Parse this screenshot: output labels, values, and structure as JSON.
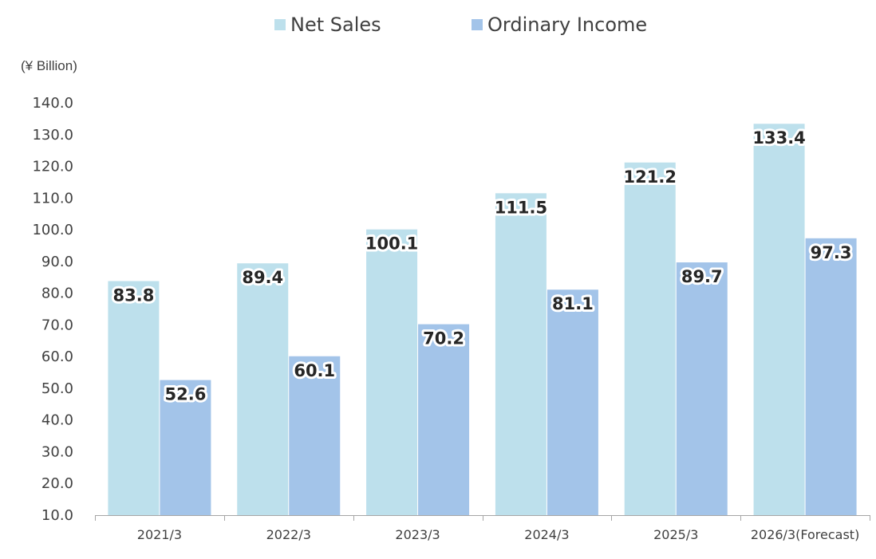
{
  "chart_data": {
    "type": "bar",
    "title": "",
    "unit_label": "(¥ Billion)",
    "xlabel": "",
    "ylabel": "",
    "categories": [
      "2021/3",
      "2022/3",
      "2023/3",
      "2024/3",
      "2025/3",
      "2026/3(Forecast)"
    ],
    "series": [
      {
        "name": "Net Sales",
        "color": "#bde0ec",
        "values": [
          83.8,
          89.4,
          100.1,
          111.5,
          121.2,
          133.4
        ]
      },
      {
        "name": "Ordinary Income",
        "color": "#a3c4e9",
        "values": [
          52.6,
          60.1,
          70.2,
          81.1,
          89.7,
          97.3
        ]
      }
    ],
    "data_labels": [
      [
        "83.8",
        "89.4",
        "100.1",
        "111.5",
        "121.2",
        "133.4"
      ],
      [
        "52.6",
        "60.1",
        "70.2",
        "81.1",
        "89.7",
        "97.3"
      ]
    ],
    "ylim": [
      10,
      140
    ],
    "yticks": [
      "10.0",
      "20.0",
      "30.0",
      "40.0",
      "50.0",
      "60.0",
      "70.0",
      "80.0",
      "90.0",
      "100.0",
      "110.0",
      "120.0",
      "130.0",
      "140.0"
    ],
    "grid": false,
    "legend_position": "top-center"
  }
}
